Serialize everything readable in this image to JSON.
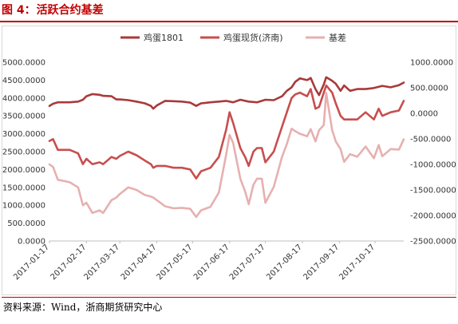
{
  "figure": {
    "prefix": "图 4：",
    "title": "活跃合约基差"
  },
  "source": "资料来源：Wind，浙商期货研究中心",
  "colors": {
    "title": "#c00000",
    "futures": "#a93a3a",
    "spot": "#c84e4e",
    "basis": "#e7b0b0"
  },
  "chart_data": {
    "type": "line",
    "title": "",
    "legend_position": "top-center",
    "grid": false,
    "x_labels": [
      "2017-01-17",
      "2017-02-17",
      "2017-03-17",
      "2017-04-17",
      "2017-05-17",
      "2017-06-17",
      "2017-07-17",
      "2017-08-17",
      "2017-09-17",
      "2017-10-17"
    ],
    "x_range": [
      "2017-01-17",
      "2017-11-10"
    ],
    "left_axis": {
      "min": 0,
      "max": 5000,
      "step": 500,
      "tick_labels": [
        "0.0000",
        "500.0000",
        "1000.0000",
        "1500.0000",
        "2000.0000",
        "2500.0000",
        "3000.0000",
        "3500.0000",
        "4000.0000",
        "4500.0000",
        "5000.0000"
      ]
    },
    "right_axis": {
      "min": -2500,
      "max": 1000,
      "step": 500,
      "tick_labels": [
        "-2500.0000",
        "-2000.0000",
        "-1500.0000",
        "-1000.0000",
        "-500.0000",
        "0.0000",
        "500.0000",
        "1000.0000"
      ]
    },
    "series": [
      {
        "name": "鸡蛋1801",
        "axis": "left",
        "color": "#a93a3a",
        "points": [
          [
            "2017-01-17",
            3780
          ],
          [
            "2017-01-20",
            3840
          ],
          [
            "2017-01-24",
            3880
          ],
          [
            "2017-02-03",
            3880
          ],
          [
            "2017-02-10",
            3900
          ],
          [
            "2017-02-14",
            3950
          ],
          [
            "2017-02-17",
            4050
          ],
          [
            "2017-02-22",
            4110
          ],
          [
            "2017-02-28",
            4090
          ],
          [
            "2017-03-03",
            4060
          ],
          [
            "2017-03-10",
            4050
          ],
          [
            "2017-03-14",
            3960
          ],
          [
            "2017-03-17",
            3960
          ],
          [
            "2017-03-24",
            3940
          ],
          [
            "2017-03-31",
            3900
          ],
          [
            "2017-04-07",
            3850
          ],
          [
            "2017-04-12",
            3780
          ],
          [
            "2017-04-14",
            3700
          ],
          [
            "2017-04-17",
            3790
          ],
          [
            "2017-04-24",
            3920
          ],
          [
            "2017-05-01",
            3910
          ],
          [
            "2017-05-08",
            3900
          ],
          [
            "2017-05-15",
            3870
          ],
          [
            "2017-05-20",
            3780
          ],
          [
            "2017-05-24",
            3850
          ],
          [
            "2017-06-01",
            3880
          ],
          [
            "2017-06-08",
            3900
          ],
          [
            "2017-06-14",
            3920
          ],
          [
            "2017-06-20",
            3880
          ],
          [
            "2017-06-26",
            3950
          ],
          [
            "2017-07-03",
            3900
          ],
          [
            "2017-07-10",
            3880
          ],
          [
            "2017-07-17",
            3950
          ],
          [
            "2017-07-24",
            3940
          ],
          [
            "2017-07-31",
            4050
          ],
          [
            "2017-08-04",
            4200
          ],
          [
            "2017-08-08",
            4300
          ],
          [
            "2017-08-11",
            4450
          ],
          [
            "2017-08-15",
            4550
          ],
          [
            "2017-08-21",
            4500
          ],
          [
            "2017-08-24",
            4560
          ],
          [
            "2017-08-28",
            4250
          ],
          [
            "2017-08-31",
            4080
          ],
          [
            "2017-09-04",
            4380
          ],
          [
            "2017-09-06",
            4580
          ],
          [
            "2017-09-11",
            4480
          ],
          [
            "2017-09-14",
            4400
          ],
          [
            "2017-09-18",
            4200
          ],
          [
            "2017-09-21",
            4350
          ],
          [
            "2017-09-26",
            4200
          ],
          [
            "2017-10-02",
            4250
          ],
          [
            "2017-10-09",
            4250
          ],
          [
            "2017-10-16",
            4280
          ],
          [
            "2017-10-23",
            4340
          ],
          [
            "2017-10-30",
            4300
          ],
          [
            "2017-11-06",
            4360
          ],
          [
            "2017-11-10",
            4430
          ]
        ]
      },
      {
        "name": "鸡蛋现货(济南)",
        "axis": "left",
        "color": "#c84e4e",
        "points": [
          [
            "2017-01-17",
            2800
          ],
          [
            "2017-01-20",
            2850
          ],
          [
            "2017-01-24",
            2550
          ],
          [
            "2017-02-03",
            2550
          ],
          [
            "2017-02-10",
            2450
          ],
          [
            "2017-02-14",
            2150
          ],
          [
            "2017-02-17",
            2300
          ],
          [
            "2017-02-22",
            2150
          ],
          [
            "2017-02-28",
            2200
          ],
          [
            "2017-03-03",
            2150
          ],
          [
            "2017-03-10",
            2350
          ],
          [
            "2017-03-14",
            2300
          ],
          [
            "2017-03-17",
            2380
          ],
          [
            "2017-03-24",
            2500
          ],
          [
            "2017-03-31",
            2400
          ],
          [
            "2017-04-07",
            2250
          ],
          [
            "2017-04-12",
            2150
          ],
          [
            "2017-04-14",
            2050
          ],
          [
            "2017-04-17",
            2100
          ],
          [
            "2017-04-24",
            2100
          ],
          [
            "2017-05-01",
            2050
          ],
          [
            "2017-05-08",
            2050
          ],
          [
            "2017-05-15",
            2000
          ],
          [
            "2017-05-20",
            1750
          ],
          [
            "2017-05-24",
            1950
          ],
          [
            "2017-06-01",
            2050
          ],
          [
            "2017-06-08",
            2350
          ],
          [
            "2017-06-14",
            3100
          ],
          [
            "2017-06-17",
            3600
          ],
          [
            "2017-06-20",
            3300
          ],
          [
            "2017-06-26",
            2600
          ],
          [
            "2017-06-30",
            2350
          ],
          [
            "2017-07-03",
            2100
          ],
          [
            "2017-07-07",
            2500
          ],
          [
            "2017-07-10",
            2600
          ],
          [
            "2017-07-14",
            2600
          ],
          [
            "2017-07-17",
            2200
          ],
          [
            "2017-07-24",
            2500
          ],
          [
            "2017-07-31",
            3200
          ],
          [
            "2017-08-04",
            3600
          ],
          [
            "2017-08-08",
            4000
          ],
          [
            "2017-08-11",
            4100
          ],
          [
            "2017-08-15",
            4150
          ],
          [
            "2017-08-21",
            4050
          ],
          [
            "2017-08-24",
            4250
          ],
          [
            "2017-08-28",
            3700
          ],
          [
            "2017-08-31",
            3750
          ],
          [
            "2017-09-04",
            4150
          ],
          [
            "2017-09-06",
            4350
          ],
          [
            "2017-09-11",
            4150
          ],
          [
            "2017-09-14",
            3850
          ],
          [
            "2017-09-18",
            3500
          ],
          [
            "2017-09-21",
            3400
          ],
          [
            "2017-09-26",
            3400
          ],
          [
            "2017-10-02",
            3400
          ],
          [
            "2017-10-09",
            3600
          ],
          [
            "2017-10-16",
            3400
          ],
          [
            "2017-10-20",
            3700
          ],
          [
            "2017-10-23",
            3500
          ],
          [
            "2017-10-30",
            3600
          ],
          [
            "2017-11-06",
            3650
          ],
          [
            "2017-11-10",
            3920
          ]
        ]
      },
      {
        "name": "基差",
        "axis": "right",
        "color": "#e7b0b0",
        "points": [
          [
            "2017-01-17",
            -1000
          ],
          [
            "2017-01-20",
            -1050
          ],
          [
            "2017-01-24",
            -1300
          ],
          [
            "2017-02-03",
            -1350
          ],
          [
            "2017-02-10",
            -1450
          ],
          [
            "2017-02-14",
            -1800
          ],
          [
            "2017-02-17",
            -1750
          ],
          [
            "2017-02-22",
            -1950
          ],
          [
            "2017-02-28",
            -1900
          ],
          [
            "2017-03-03",
            -1950
          ],
          [
            "2017-03-10",
            -1700
          ],
          [
            "2017-03-14",
            -1650
          ],
          [
            "2017-03-17",
            -1580
          ],
          [
            "2017-03-24",
            -1450
          ],
          [
            "2017-03-31",
            -1500
          ],
          [
            "2017-04-07",
            -1600
          ],
          [
            "2017-04-12",
            -1630
          ],
          [
            "2017-04-14",
            -1650
          ],
          [
            "2017-04-17",
            -1700
          ],
          [
            "2017-04-24",
            -1820
          ],
          [
            "2017-05-01",
            -1860
          ],
          [
            "2017-05-08",
            -1850
          ],
          [
            "2017-05-15",
            -1870
          ],
          [
            "2017-05-20",
            -2030
          ],
          [
            "2017-05-24",
            -1900
          ],
          [
            "2017-06-01",
            -1830
          ],
          [
            "2017-06-08",
            -1550
          ],
          [
            "2017-06-14",
            -820
          ],
          [
            "2017-06-17",
            -420
          ],
          [
            "2017-06-20",
            -580
          ],
          [
            "2017-06-26",
            -1280
          ],
          [
            "2017-06-30",
            -1530
          ],
          [
            "2017-07-03",
            -1780
          ],
          [
            "2017-07-07",
            -1400
          ],
          [
            "2017-07-10",
            -1280
          ],
          [
            "2017-07-14",
            -1280
          ],
          [
            "2017-07-17",
            -1750
          ],
          [
            "2017-07-24",
            -1440
          ],
          [
            "2017-07-31",
            -850
          ],
          [
            "2017-08-04",
            -600
          ],
          [
            "2017-08-08",
            -300
          ],
          [
            "2017-08-11",
            -350
          ],
          [
            "2017-08-15",
            -400
          ],
          [
            "2017-08-21",
            -450
          ],
          [
            "2017-08-24",
            -310
          ],
          [
            "2017-08-28",
            -550
          ],
          [
            "2017-08-31",
            -330
          ],
          [
            "2017-09-04",
            -230
          ],
          [
            "2017-09-06",
            400
          ],
          [
            "2017-09-11",
            -330
          ],
          [
            "2017-09-14",
            -550
          ],
          [
            "2017-09-18",
            -700
          ],
          [
            "2017-09-21",
            -950
          ],
          [
            "2017-09-26",
            -800
          ],
          [
            "2017-10-02",
            -850
          ],
          [
            "2017-10-09",
            -650
          ],
          [
            "2017-10-16",
            -880
          ],
          [
            "2017-10-20",
            -620
          ],
          [
            "2017-10-23",
            -840
          ],
          [
            "2017-10-30",
            -700
          ],
          [
            "2017-11-06",
            -710
          ],
          [
            "2017-11-10",
            -510
          ]
        ]
      }
    ]
  }
}
